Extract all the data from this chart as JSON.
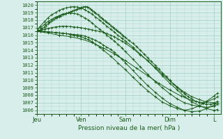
{
  "title": "Pression niveau de la mer( hPa )",
  "ylabel_ticks": [
    1006,
    1007,
    1008,
    1009,
    1010,
    1011,
    1012,
    1013,
    1014,
    1015,
    1016,
    1017,
    1018,
    1019,
    1020
  ],
  "ylim": [
    1005.5,
    1020.5
  ],
  "xlim": [
    0,
    4.15
  ],
  "xtick_positions": [
    0,
    1,
    2,
    3,
    4
  ],
  "xtick_labels": [
    "Jeu",
    "Ven",
    "Sam",
    "Dim",
    "L"
  ],
  "bg_color": "#d8eeea",
  "grid_color": "#aad4cc",
  "line_color": "#1a5c1a",
  "line_width": 0.7,
  "curves": [
    {
      "x": [
        0.0,
        0.04,
        0.08,
        0.12,
        0.17,
        0.21,
        0.25,
        0.29,
        0.33,
        0.38,
        0.42,
        0.46,
        0.5,
        0.54,
        0.58,
        0.63,
        0.67,
        0.71,
        0.75,
        0.79,
        0.83,
        0.88,
        0.92,
        0.96,
        1.0,
        1.04,
        1.08,
        1.13,
        1.17,
        1.21,
        1.25,
        1.29,
        1.33,
        1.38,
        1.42,
        1.46,
        1.5,
        1.54,
        1.58,
        1.63,
        1.67,
        1.71,
        1.75,
        1.79,
        1.83,
        1.88,
        1.92,
        1.96,
        2.0,
        2.08,
        2.17,
        2.25,
        2.33,
        2.42,
        2.5,
        2.58,
        2.67,
        2.75,
        2.83,
        2.92,
        3.0,
        3.08,
        3.17,
        3.25,
        3.33,
        3.42,
        3.5,
        3.58,
        3.67,
        3.75,
        3.83,
        3.92,
        4.0,
        4.08
      ],
      "y": [
        1016.5,
        1016.6,
        1016.7,
        1016.9,
        1017.1,
        1017.3,
        1017.5,
        1017.7,
        1017.9,
        1018.1,
        1018.3,
        1018.4,
        1018.5,
        1018.6,
        1018.7,
        1018.8,
        1018.9,
        1019.0,
        1019.1,
        1019.2,
        1019.3,
        1019.4,
        1019.5,
        1019.6,
        1019.7,
        1019.75,
        1019.8,
        1019.8,
        1019.7,
        1019.5,
        1019.3,
        1019.1,
        1018.9,
        1018.7,
        1018.5,
        1018.3,
        1018.1,
        1017.9,
        1017.7,
        1017.5,
        1017.3,
        1017.1,
        1016.9,
        1016.7,
        1016.5,
        1016.3,
        1016.1,
        1015.9,
        1015.7,
        1015.3,
        1014.9,
        1014.5,
        1014.0,
        1013.5,
        1013.0,
        1012.5,
        1012.0,
        1011.5,
        1011.0,
        1010.5,
        1010.0,
        1009.5,
        1009.0,
        1008.6,
        1008.2,
        1007.8,
        1007.5,
        1007.2,
        1007.0,
        1006.9,
        1006.8,
        1006.8,
        1006.9,
        1007.0
      ]
    },
    {
      "x": [
        0.0,
        0.08,
        0.17,
        0.25,
        0.33,
        0.42,
        0.5,
        0.58,
        0.67,
        0.75,
        0.83,
        0.92,
        1.0,
        1.08,
        1.17,
        1.25,
        1.33,
        1.42,
        1.5,
        1.58,
        1.67,
        1.75,
        1.83,
        1.92,
        2.0,
        2.17,
        2.33,
        2.5,
        2.67,
        2.83,
        3.0,
        3.17,
        3.33,
        3.5,
        3.67,
        3.83,
        4.0,
        4.08
      ],
      "y": [
        1016.7,
        1017.2,
        1017.8,
        1018.3,
        1018.7,
        1019.0,
        1019.3,
        1019.5,
        1019.65,
        1019.75,
        1019.8,
        1019.75,
        1019.6,
        1019.4,
        1019.1,
        1018.8,
        1018.4,
        1018.0,
        1017.6,
        1017.2,
        1016.8,
        1016.4,
        1016.0,
        1015.6,
        1015.2,
        1014.4,
        1013.5,
        1012.6,
        1011.6,
        1010.6,
        1009.6,
        1008.7,
        1007.8,
        1007.1,
        1006.6,
        1006.2,
        1006.0,
        1006.1
      ]
    },
    {
      "x": [
        0.0,
        0.08,
        0.17,
        0.25,
        0.33,
        0.42,
        0.5,
        0.58,
        0.67,
        0.75,
        0.83,
        0.92,
        1.0,
        1.08,
        1.17,
        1.25,
        1.33,
        1.42,
        1.5,
        1.58,
        1.67,
        1.75,
        1.83,
        1.92,
        2.0,
        2.17,
        2.33,
        2.5,
        2.67,
        2.83,
        3.0,
        3.17,
        3.33,
        3.5,
        3.67,
        3.83,
        4.0,
        4.08
      ],
      "y": [
        1016.7,
        1017.0,
        1017.4,
        1017.8,
        1018.1,
        1018.4,
        1018.6,
        1018.8,
        1018.9,
        1018.95,
        1018.9,
        1018.8,
        1018.6,
        1018.3,
        1018.0,
        1017.6,
        1017.2,
        1016.8,
        1016.4,
        1016.0,
        1015.6,
        1015.2,
        1014.8,
        1014.3,
        1013.8,
        1012.8,
        1011.8,
        1010.8,
        1009.8,
        1009.0,
        1008.2,
        1007.5,
        1007.0,
        1006.7,
        1006.5,
        1006.4,
        1006.5,
        1006.8
      ]
    },
    {
      "x": [
        0.0,
        0.08,
        0.17,
        0.25,
        0.33,
        0.42,
        0.5,
        0.58,
        0.67,
        0.75,
        0.83,
        0.92,
        1.0,
        1.08,
        1.17,
        1.25,
        1.33,
        1.42,
        1.5,
        1.58,
        1.67,
        1.75,
        1.83,
        1.92,
        2.0,
        2.17,
        2.33,
        2.5,
        2.67,
        2.83,
        3.0,
        3.17,
        3.33,
        3.5,
        3.67,
        3.83,
        4.0,
        4.08
      ],
      "y": [
        1016.6,
        1016.7,
        1016.8,
        1016.9,
        1017.0,
        1017.1,
        1017.15,
        1017.2,
        1017.2,
        1017.15,
        1017.1,
        1017.05,
        1017.0,
        1016.9,
        1016.8,
        1016.7,
        1016.6,
        1016.5,
        1016.4,
        1016.2,
        1016.0,
        1015.8,
        1015.5,
        1015.2,
        1014.9,
        1014.2,
        1013.4,
        1012.6,
        1011.7,
        1010.8,
        1009.9,
        1009.1,
        1008.4,
        1007.8,
        1007.4,
        1007.1,
        1007.0,
        1007.2
      ]
    },
    {
      "x": [
        0.0,
        0.08,
        0.17,
        0.25,
        0.33,
        0.42,
        0.5,
        0.58,
        0.67,
        0.75,
        0.83,
        0.92,
        1.0,
        1.08,
        1.17,
        1.25,
        1.33,
        1.42,
        1.5,
        1.58,
        1.67,
        1.75,
        1.83,
        1.92,
        2.0,
        2.17,
        2.33,
        2.5,
        2.67,
        2.83,
        3.0,
        3.17,
        3.33,
        3.5,
        3.67,
        3.83,
        4.0,
        4.08
      ],
      "y": [
        1016.6,
        1016.55,
        1016.5,
        1016.45,
        1016.4,
        1016.35,
        1016.3,
        1016.25,
        1016.2,
        1016.15,
        1016.1,
        1016.05,
        1016.0,
        1015.9,
        1015.7,
        1015.5,
        1015.3,
        1015.0,
        1014.7,
        1014.4,
        1014.1,
        1013.7,
        1013.3,
        1012.8,
        1012.3,
        1011.3,
        1010.3,
        1009.3,
        1008.4,
        1007.6,
        1006.9,
        1006.4,
        1006.0,
        1005.8,
        1005.9,
        1006.2,
        1006.7,
        1007.0
      ]
    },
    {
      "x": [
        0.0,
        0.08,
        0.17,
        0.25,
        0.33,
        0.42,
        0.5,
        0.58,
        0.67,
        0.75,
        0.83,
        0.92,
        1.0,
        1.08,
        1.17,
        1.25,
        1.33,
        1.42,
        1.5,
        1.67,
        1.83,
        2.0,
        2.17,
        2.33,
        2.5,
        2.67,
        2.83,
        3.0,
        3.17,
        3.33,
        3.5,
        3.67,
        3.83,
        4.0,
        4.08
      ],
      "y": [
        1016.6,
        1016.55,
        1016.5,
        1016.45,
        1016.4,
        1016.35,
        1016.3,
        1016.25,
        1016.2,
        1016.1,
        1016.0,
        1015.9,
        1015.8,
        1015.6,
        1015.4,
        1015.1,
        1014.8,
        1014.4,
        1014.0,
        1013.2,
        1012.3,
        1011.4,
        1010.4,
        1009.5,
        1008.6,
        1007.8,
        1007.1,
        1006.6,
        1006.2,
        1006.0,
        1006.2,
        1006.6,
        1007.2,
        1007.9,
        1008.3
      ]
    },
    {
      "x": [
        0.0,
        0.25,
        0.5,
        0.75,
        1.0,
        1.25,
        1.5,
        1.75,
        2.0,
        2.25,
        2.5,
        2.75,
        3.0,
        3.25,
        3.5,
        3.75,
        4.0,
        4.08
      ],
      "y": [
        1016.5,
        1016.3,
        1016.0,
        1015.8,
        1015.5,
        1015.0,
        1014.3,
        1013.5,
        1012.6,
        1011.6,
        1010.6,
        1009.6,
        1008.7,
        1007.9,
        1007.3,
        1007.0,
        1007.5,
        1007.8
      ]
    }
  ]
}
